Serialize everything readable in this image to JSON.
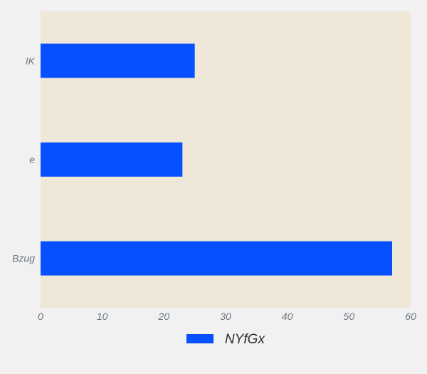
{
  "chart_data": {
    "type": "bar",
    "orientation": "horizontal",
    "categories": [
      "IK",
      "e",
      "Bzug"
    ],
    "series": [
      {
        "name": "NYfGx",
        "values": [
          25,
          23,
          57
        ]
      }
    ],
    "xlim": [
      0,
      60
    ],
    "xticks": [
      "0",
      "10",
      "20",
      "30",
      "40",
      "50",
      "60"
    ],
    "grid": false,
    "legend": "bottom-center",
    "colors": {
      "bar": "#0650ff",
      "plot_background": "#efe8d8",
      "page_background": "#f1f1f1",
      "tick_text": "#6b7580"
    }
  }
}
